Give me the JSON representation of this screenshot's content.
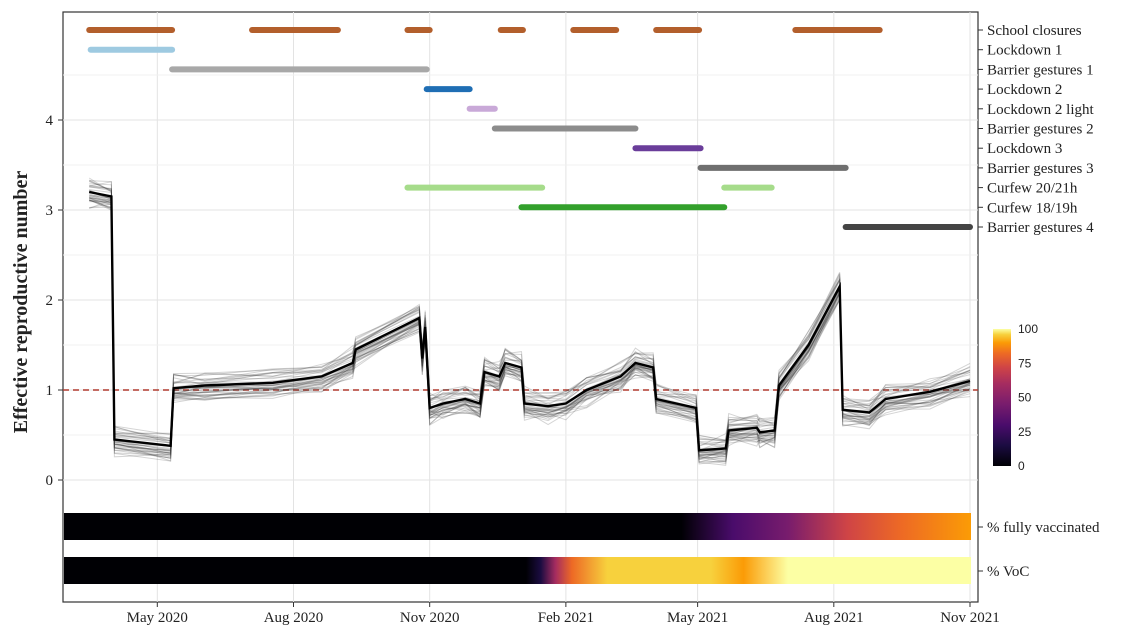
{
  "chart_data": {
    "type": "line",
    "ylabel": "Effective reproductive number",
    "xlabel": "",
    "x_ticks": [
      "May 2020",
      "Aug 2020",
      "Nov 2020",
      "Feb 2021",
      "May 2021",
      "Aug 2021",
      "Nov 2021"
    ],
    "x_range": [
      "2020-03-01",
      "2021-11-01"
    ],
    "y_ticks": [
      "0",
      "1",
      "2",
      "3",
      "4"
    ],
    "ylim": [
      0,
      4
    ],
    "reference_line": {
      "y": 1,
      "style": "dashed",
      "color": "#b03a2e"
    },
    "grid": true,
    "median_series": [
      {
        "x": "2020-03-16",
        "y": 3.2
      },
      {
        "x": "2020-03-31",
        "y": 3.15
      },
      {
        "x": "2020-04-02",
        "y": 0.45
      },
      {
        "x": "2020-05-10",
        "y": 0.38
      },
      {
        "x": "2020-05-12",
        "y": 1.02
      },
      {
        "x": "2020-06-02",
        "y": 1.05
      },
      {
        "x": "2020-07-18",
        "y": 1.08
      },
      {
        "x": "2020-08-20",
        "y": 1.15
      },
      {
        "x": "2020-09-10",
        "y": 1.3
      },
      {
        "x": "2020-09-12",
        "y": 1.45
      },
      {
        "x": "2020-10-25",
        "y": 1.8
      },
      {
        "x": "2020-10-27",
        "y": 1.35
      },
      {
        "x": "2020-10-29",
        "y": 1.7
      },
      {
        "x": "2020-11-01",
        "y": 0.8
      },
      {
        "x": "2020-11-10",
        "y": 0.85
      },
      {
        "x": "2020-11-25",
        "y": 0.9
      },
      {
        "x": "2020-12-05",
        "y": 0.85
      },
      {
        "x": "2020-12-08",
        "y": 1.2
      },
      {
        "x": "2020-12-18",
        "y": 1.15
      },
      {
        "x": "2020-12-22",
        "y": 1.3
      },
      {
        "x": "2021-01-02",
        "y": 1.25
      },
      {
        "x": "2021-01-04",
        "y": 0.85
      },
      {
        "x": "2021-01-20",
        "y": 0.82
      },
      {
        "x": "2021-02-01",
        "y": 0.85
      },
      {
        "x": "2021-02-15",
        "y": 1.0
      },
      {
        "x": "2021-03-10",
        "y": 1.15
      },
      {
        "x": "2021-03-20",
        "y": 1.3
      },
      {
        "x": "2021-04-01",
        "y": 1.25
      },
      {
        "x": "2021-04-03",
        "y": 0.9
      },
      {
        "x": "2021-04-30",
        "y": 0.8
      },
      {
        "x": "2021-05-02",
        "y": 0.33
      },
      {
        "x": "2021-05-20",
        "y": 0.35
      },
      {
        "x": "2021-05-22",
        "y": 0.55
      },
      {
        "x": "2021-06-10",
        "y": 0.58
      },
      {
        "x": "2021-06-12",
        "y": 0.53
      },
      {
        "x": "2021-06-22",
        "y": 0.55
      },
      {
        "x": "2021-06-25",
        "y": 1.05
      },
      {
        "x": "2021-07-15",
        "y": 1.5
      },
      {
        "x": "2021-08-05",
        "y": 2.15
      },
      {
        "x": "2021-08-07",
        "y": 0.78
      },
      {
        "x": "2021-08-25",
        "y": 0.75
      },
      {
        "x": "2021-09-05",
        "y": 0.9
      },
      {
        "x": "2021-10-05",
        "y": 0.98
      },
      {
        "x": "2021-11-01",
        "y": 1.1
      }
    ],
    "interventions": [
      {
        "label": "School closures",
        "color": "#b35f2c",
        "periods": [
          [
            "2020-03-16",
            "2020-05-11"
          ],
          [
            "2020-07-04",
            "2020-08-31"
          ],
          [
            "2020-10-17",
            "2020-11-01"
          ],
          [
            "2020-12-19",
            "2021-01-03"
          ],
          [
            "2021-02-06",
            "2021-03-07"
          ],
          [
            "2021-04-03",
            "2021-05-02"
          ],
          [
            "2021-07-06",
            "2021-09-01"
          ]
        ]
      },
      {
        "label": "Lockdown 1",
        "color": "#9ecae1",
        "periods": [
          [
            "2020-03-17",
            "2020-05-11"
          ]
        ]
      },
      {
        "label": "Barrier gestures 1",
        "color": "#a8a8a8",
        "periods": [
          [
            "2020-05-11",
            "2020-10-30"
          ]
        ]
      },
      {
        "label": "Lockdown 2",
        "color": "#1f6eb4",
        "periods": [
          [
            "2020-10-30",
            "2020-11-28"
          ]
        ]
      },
      {
        "label": "Lockdown 2 light",
        "color": "#c9a9d8",
        "periods": [
          [
            "2020-11-28",
            "2020-12-15"
          ]
        ]
      },
      {
        "label": "Barrier gestures 2",
        "color": "#8c8c8c",
        "periods": [
          [
            "2020-12-15",
            "2021-03-20"
          ]
        ]
      },
      {
        "label": "Lockdown 3",
        "color": "#6a3d9a",
        "periods": [
          [
            "2021-03-20",
            "2021-05-03"
          ]
        ]
      },
      {
        "label": "Barrier gestures 3",
        "color": "#6f6f6f",
        "periods": [
          [
            "2021-05-03",
            "2021-08-09"
          ]
        ]
      },
      {
        "label": "Curfew 20/21h",
        "color": "#a6dc8b",
        "periods": [
          [
            "2020-10-17",
            "2021-01-16"
          ],
          [
            "2021-05-19",
            "2021-06-20"
          ]
        ]
      },
      {
        "label": "Curfew 18/19h",
        "color": "#33a02c",
        "periods": [
          [
            "2021-01-02",
            "2021-05-19"
          ]
        ]
      },
      {
        "label": "Barrier gestures 4",
        "color": "#444444",
        "periods": [
          [
            "2021-08-09",
            "2021-11-01"
          ]
        ]
      }
    ],
    "heat_strips": [
      {
        "label": "% fully vaccinated",
        "stops": [
          {
            "x": "2020-03-01",
            "v": 0
          },
          {
            "x": "2021-03-15",
            "v": 0
          },
          {
            "x": "2021-04-20",
            "v": 5
          },
          {
            "x": "2021-05-25",
            "v": 20
          },
          {
            "x": "2021-07-01",
            "v": 35
          },
          {
            "x": "2021-08-10",
            "v": 55
          },
          {
            "x": "2021-09-15",
            "v": 68
          },
          {
            "x": "2021-11-01",
            "v": 75
          }
        ]
      },
      {
        "label": "% VoC",
        "stops": [
          {
            "x": "2020-03-01",
            "v": 0
          },
          {
            "x": "2021-01-05",
            "v": 0
          },
          {
            "x": "2021-01-15",
            "v": 10
          },
          {
            "x": "2021-01-25",
            "v": 45
          },
          {
            "x": "2021-02-05",
            "v": 70
          },
          {
            "x": "2021-03-01",
            "v": 85
          },
          {
            "x": "2021-05-10",
            "v": 88
          },
          {
            "x": "2021-06-01",
            "v": 82
          },
          {
            "x": "2021-07-01",
            "v": 95
          },
          {
            "x": "2021-11-01",
            "v": 100
          }
        ]
      }
    ],
    "colorbar": {
      "ticks": [
        "100",
        "75",
        "50",
        "25",
        "0"
      ],
      "range": [
        0,
        100
      ]
    }
  }
}
